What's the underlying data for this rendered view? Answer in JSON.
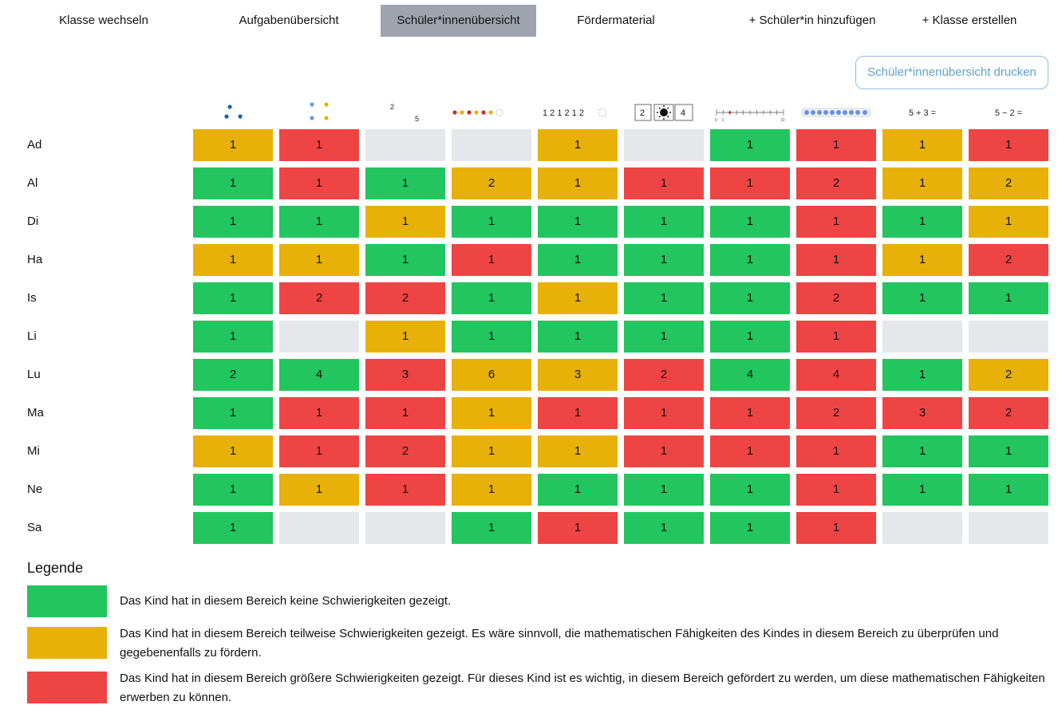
{
  "nav": {
    "switch_class": "Klasse wechseln",
    "tasks_overview": "Aufgabenübersicht",
    "students_overview": "Schüler*innenübersicht",
    "support_material": "Fördermaterial",
    "add_student": "+ Schüler*in hinzufügen",
    "create_class": "+ Klasse erstellen"
  },
  "print_button": "Schüler*innenübersicht drucken",
  "column_icons": [
    {
      "name": "three-dots-icon"
    },
    {
      "name": "four-dots-icon"
    },
    {
      "label_a": "2",
      "label_b": "5",
      "name": "number-position-icon"
    },
    {
      "name": "color-dot-row-icon"
    },
    {
      "label": "1 2 1 2 1 2",
      "name": "number-pattern-icon"
    },
    {
      "label_a": "2",
      "label_b": "4",
      "name": "sun-neighbors-icon"
    },
    {
      "label_a": "0",
      "label_b": "1",
      "label_c": "10",
      "name": "number-line-icon"
    },
    {
      "name": "bead-string-icon"
    },
    {
      "label": "5 + 3 =",
      "name": "addition-icon"
    },
    {
      "label": "5 − 2 =",
      "name": "subtraction-icon"
    }
  ],
  "colors": {
    "green": "#22c55e",
    "yellow": "#e8b10a",
    "red": "#ef4444",
    "empty": "#e5e7eb"
  },
  "rows": [
    {
      "name": "Ad",
      "cells": [
        [
          "yellow",
          "1"
        ],
        [
          "red",
          "1"
        ],
        [
          "empty",
          ""
        ],
        [
          "empty",
          ""
        ],
        [
          "yellow",
          "1"
        ],
        [
          "empty",
          ""
        ],
        [
          "green",
          "1"
        ],
        [
          "red",
          "1"
        ],
        [
          "yellow",
          "1"
        ],
        [
          "red",
          "1"
        ]
      ]
    },
    {
      "name": "Al",
      "cells": [
        [
          "green",
          "1"
        ],
        [
          "red",
          "1"
        ],
        [
          "green",
          "1"
        ],
        [
          "yellow",
          "2"
        ],
        [
          "yellow",
          "1"
        ],
        [
          "red",
          "1"
        ],
        [
          "red",
          "1"
        ],
        [
          "red",
          "2"
        ],
        [
          "yellow",
          "1"
        ],
        [
          "yellow",
          "2"
        ]
      ]
    },
    {
      "name": "Di",
      "cells": [
        [
          "green",
          "1"
        ],
        [
          "green",
          "1"
        ],
        [
          "yellow",
          "1"
        ],
        [
          "green",
          "1"
        ],
        [
          "green",
          "1"
        ],
        [
          "green",
          "1"
        ],
        [
          "green",
          "1"
        ],
        [
          "red",
          "1"
        ],
        [
          "green",
          "1"
        ],
        [
          "yellow",
          "1"
        ]
      ]
    },
    {
      "name": "Ha",
      "cells": [
        [
          "yellow",
          "1"
        ],
        [
          "yellow",
          "1"
        ],
        [
          "green",
          "1"
        ],
        [
          "red",
          "1"
        ],
        [
          "green",
          "1"
        ],
        [
          "green",
          "1"
        ],
        [
          "green",
          "1"
        ],
        [
          "red",
          "1"
        ],
        [
          "yellow",
          "1"
        ],
        [
          "red",
          "2"
        ]
      ]
    },
    {
      "name": "Is",
      "cells": [
        [
          "green",
          "1"
        ],
        [
          "red",
          "2"
        ],
        [
          "red",
          "2"
        ],
        [
          "green",
          "1"
        ],
        [
          "yellow",
          "1"
        ],
        [
          "green",
          "1"
        ],
        [
          "green",
          "1"
        ],
        [
          "red",
          "2"
        ],
        [
          "green",
          "1"
        ],
        [
          "green",
          "1"
        ]
      ]
    },
    {
      "name": "Li",
      "cells": [
        [
          "green",
          "1"
        ],
        [
          "empty",
          ""
        ],
        [
          "yellow",
          "1"
        ],
        [
          "green",
          "1"
        ],
        [
          "green",
          "1"
        ],
        [
          "green",
          "1"
        ],
        [
          "green",
          "1"
        ],
        [
          "red",
          "1"
        ],
        [
          "empty",
          ""
        ],
        [
          "empty",
          ""
        ]
      ]
    },
    {
      "name": "Lu",
      "cells": [
        [
          "green",
          "2"
        ],
        [
          "green",
          "4"
        ],
        [
          "red",
          "3"
        ],
        [
          "yellow",
          "6"
        ],
        [
          "yellow",
          "3"
        ],
        [
          "red",
          "2"
        ],
        [
          "green",
          "4"
        ],
        [
          "red",
          "4"
        ],
        [
          "green",
          "1"
        ],
        [
          "yellow",
          "2"
        ]
      ]
    },
    {
      "name": "Ma",
      "cells": [
        [
          "green",
          "1"
        ],
        [
          "red",
          "1"
        ],
        [
          "red",
          "1"
        ],
        [
          "yellow",
          "1"
        ],
        [
          "red",
          "1"
        ],
        [
          "red",
          "1"
        ],
        [
          "red",
          "1"
        ],
        [
          "red",
          "2"
        ],
        [
          "red",
          "3"
        ],
        [
          "red",
          "2"
        ]
      ]
    },
    {
      "name": "Mi",
      "cells": [
        [
          "yellow",
          "1"
        ],
        [
          "red",
          "1"
        ],
        [
          "red",
          "2"
        ],
        [
          "yellow",
          "1"
        ],
        [
          "yellow",
          "1"
        ],
        [
          "red",
          "1"
        ],
        [
          "red",
          "1"
        ],
        [
          "red",
          "1"
        ],
        [
          "green",
          "1"
        ],
        [
          "green",
          "1"
        ]
      ]
    },
    {
      "name": "Ne",
      "cells": [
        [
          "green",
          "1"
        ],
        [
          "yellow",
          "1"
        ],
        [
          "red",
          "1"
        ],
        [
          "yellow",
          "1"
        ],
        [
          "green",
          "1"
        ],
        [
          "green",
          "1"
        ],
        [
          "green",
          "1"
        ],
        [
          "red",
          "1"
        ],
        [
          "green",
          "1"
        ],
        [
          "green",
          "1"
        ]
      ]
    },
    {
      "name": "Sa",
      "cells": [
        [
          "green",
          "1"
        ],
        [
          "empty",
          ""
        ],
        [
          "empty",
          ""
        ],
        [
          "green",
          "1"
        ],
        [
          "red",
          "1"
        ],
        [
          "green",
          "1"
        ],
        [
          "green",
          "1"
        ],
        [
          "red",
          "1"
        ],
        [
          "empty",
          ""
        ],
        [
          "empty",
          ""
        ]
      ]
    }
  ],
  "legend": {
    "title": "Legende",
    "items": [
      {
        "color": "green",
        "text": "Das Kind hat in diesem Bereich keine Schwierigkeiten gezeigt."
      },
      {
        "color": "yellow",
        "text": "Das Kind hat in diesem Bereich teilweise Schwierigkeiten gezeigt. Es wäre sinnvoll, die mathematischen Fähigkeiten des Kindes in diesem Bereich zu überprüfen und gegebenenfalls zu fördern."
      },
      {
        "color": "red",
        "text": "Das Kind hat in diesem Bereich größere Schwierigkeiten gezeigt. Für dieses Kind ist es wichtig, in diesem Bereich gefördert zu werden, um diese mathematischen Fähigkeiten erwerben zu können."
      }
    ]
  }
}
